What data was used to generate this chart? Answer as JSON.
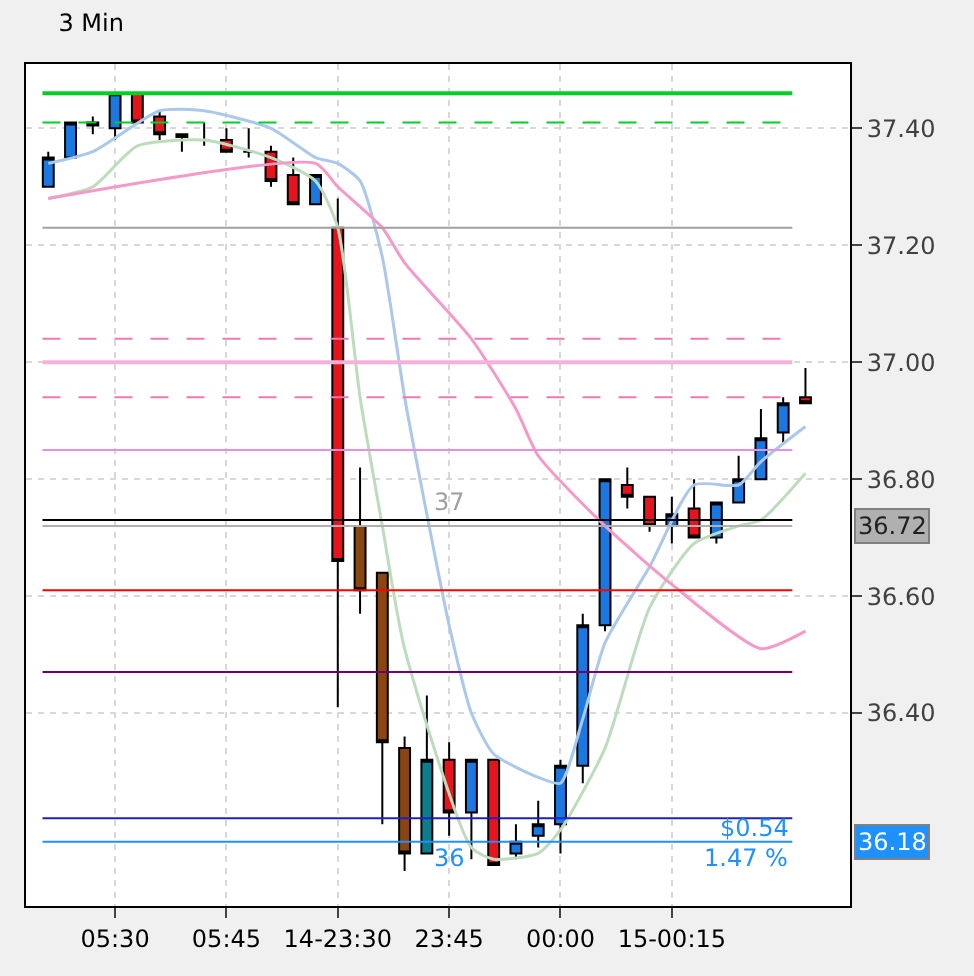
{
  "chart_data": {
    "type": "candlestick",
    "title": "3 Min",
    "categories": [
      null,
      null,
      null,
      "05:30",
      null,
      null,
      null,
      null,
      "05:45",
      null,
      null,
      null,
      null,
      "14-23:30",
      null,
      null,
      null,
      null,
      "23:45",
      null,
      null,
      null,
      null,
      "00:00",
      null,
      null,
      null,
      null,
      "15-00:15",
      null,
      null,
      null,
      null,
      null,
      null
    ],
    "ohlc": [
      [
        37.3,
        37.36,
        37.3,
        37.35
      ],
      [
        37.35,
        37.41,
        37.35,
        37.41
      ],
      [
        37.405,
        37.42,
        37.39,
        37.41
      ],
      [
        37.4,
        37.46,
        37.38,
        37.46
      ],
      [
        37.46,
        37.46,
        37.41,
        37.41
      ],
      [
        37.42,
        37.43,
        37.38,
        37.39
      ],
      [
        37.39,
        37.39,
        37.36,
        37.385
      ],
      [
        37.38,
        37.41,
        37.37,
        37.38
      ],
      [
        37.38,
        37.4,
        37.36,
        37.36
      ],
      [
        37.36,
        37.4,
        37.35,
        37.36
      ],
      [
        37.36,
        37.37,
        37.3,
        37.31
      ],
      [
        37.32,
        37.35,
        37.27,
        37.27
      ],
      [
        37.27,
        37.32,
        37.27,
        37.32
      ],
      [
        37.23,
        37.28,
        36.41,
        36.66
      ],
      [
        36.72,
        36.82,
        36.57,
        36.61
      ],
      [
        36.64,
        36.64,
        36.21,
        36.35
      ],
      [
        36.34,
        36.36,
        36.13,
        36.16
      ],
      [
        36.16,
        36.43,
        36.16,
        36.32
      ],
      [
        36.32,
        36.35,
        36.19,
        36.23
      ],
      [
        36.23,
        36.32,
        36.15,
        36.32
      ],
      [
        36.32,
        36.32,
        36.14,
        36.14
      ],
      [
        36.16,
        36.21,
        36.15,
        36.18
      ],
      [
        36.19,
        36.25,
        36.17,
        36.21
      ],
      [
        36.21,
        36.32,
        36.16,
        36.31
      ],
      [
        36.31,
        36.57,
        36.28,
        36.55
      ],
      [
        36.55,
        36.8,
        36.54,
        36.8
      ],
      [
        36.79,
        36.82,
        36.75,
        36.77
      ],
      [
        36.77,
        36.77,
        36.71,
        36.72
      ],
      [
        36.72,
        36.77,
        36.69,
        36.74
      ],
      [
        36.75,
        36.8,
        36.7,
        36.7
      ],
      [
        36.7,
        36.76,
        36.69,
        36.76
      ],
      [
        36.76,
        36.84,
        36.76,
        36.8
      ],
      [
        36.8,
        36.92,
        36.8,
        36.87
      ],
      [
        36.88,
        36.94,
        36.86,
        36.93
      ],
      [
        36.94,
        36.99,
        36.93,
        36.93
      ]
    ],
    "colors": [
      "#1a78e0",
      "#1a78e0",
      "#000000",
      "#1a78e0",
      "#e8141c",
      "#e8141c",
      "#000000",
      "#000000",
      "#e8141c",
      "#000000",
      "#e8141c",
      "#e8141c",
      "#1a78e0",
      "#e8141c",
      "#8b4513",
      "#8b4513",
      "#8b4513",
      "#0b7d8c",
      "#e8141c",
      "#1a78e0",
      "#e8141c",
      "#1a78e0",
      "#1a78e0",
      "#1a78e0",
      "#1a78e0",
      "#1a78e0",
      "#e8141c",
      "#e8141c",
      "#1a78e0",
      "#e8141c",
      "#1a78e0",
      "#1a78e0",
      "#1a78e0",
      "#1a78e0",
      "#e8141c"
    ],
    "series": [
      {
        "type": "line",
        "color": "#a9c8ec",
        "values": [
          37.34,
          null,
          37.36,
          null,
          null,
          37.43,
          null,
          37.43,
          null,
          null,
          37.4,
          null,
          37.35,
          37.34,
          37.31,
          37.18,
          36.94,
          36.74,
          36.55,
          36.4,
          36.33,
          null,
          36.29,
          36.28,
          36.39,
          36.52,
          null,
          36.65,
          null,
          36.79,
          null,
          36.79,
          36.83,
          null,
          36.89
        ]
      },
      {
        "type": "line",
        "color": "#bcdcbc",
        "values": [
          37.28,
          null,
          37.3,
          null,
          37.37,
          null,
          null,
          37.38,
          null,
          null,
          37.35,
          null,
          37.31,
          37.23,
          36.94,
          36.72,
          36.51,
          null,
          null,
          36.17,
          36.15,
          null,
          36.16,
          36.2,
          null,
          36.34,
          null,
          36.58,
          null,
          36.69,
          null,
          36.72,
          36.73,
          null,
          36.81
        ]
      },
      {
        "type": "line",
        "color": "#f59ac8",
        "values": [
          37.28,
          null,
          null,
          null,
          null,
          null,
          null,
          null,
          null,
          null,
          null,
          null,
          37.34,
          37.3,
          null,
          37.23,
          37.17,
          null,
          null,
          37.04,
          null,
          36.92,
          36.84,
          null,
          null,
          36.72,
          null,
          null,
          36.62,
          null,
          null,
          null,
          36.51,
          null,
          36.54
        ]
      }
    ],
    "ylim": [
      36.07,
      37.51
    ],
    "yticks": [
      {
        "value": 36.4,
        "label": "36.40"
      },
      {
        "value": 36.6,
        "label": "36.60"
      },
      {
        "value": 36.8,
        "label": "36.80"
      },
      {
        "value": 37.0,
        "label": "37.00"
      },
      {
        "value": 37.2,
        "label": "37.20"
      },
      {
        "value": 37.4,
        "label": "37.40"
      }
    ],
    "ref_lines": [
      {
        "axis": "y",
        "value": 37.46,
        "color": "#00d020",
        "line_style": "solid"
      },
      {
        "axis": "y",
        "value": 37.41,
        "color": "#00d020",
        "line_style": "dashed"
      },
      {
        "axis": "y",
        "value": 37.23,
        "color": "#a0a0a0",
        "line_style": "solid"
      },
      {
        "axis": "y",
        "value": 37.04,
        "color": "#f07ab0",
        "line_style": "dashed"
      },
      {
        "axis": "y",
        "value": 37.0,
        "color": "#f8b0d8",
        "line_style": "solid"
      },
      {
        "axis": "y",
        "value": 36.94,
        "color": "#f07ab0",
        "line_style": "dashed"
      },
      {
        "axis": "y",
        "value": 36.85,
        "color": "#e890e0",
        "line_style": "solid"
      },
      {
        "axis": "y",
        "value": 36.73,
        "color": "#000000",
        "line_style": "solid"
      },
      {
        "axis": "y",
        "value": 36.72,
        "color": "#b0b0b0",
        "line_style": "solid",
        "label": "36.72"
      },
      {
        "axis": "y",
        "value": 36.61,
        "color": "#ff0000",
        "line_style": "solid"
      },
      {
        "axis": "y",
        "value": 36.47,
        "color": "#700070",
        "line_style": "solid"
      },
      {
        "axis": "y",
        "value": 36.22,
        "color": "#2020c0",
        "line_style": "solid"
      },
      {
        "axis": "y",
        "value": 36.18,
        "color": "#1e90ff",
        "line_style": "solid",
        "label": "36.18"
      }
    ],
    "annotations": [
      "37",
      "36",
      "$0.54",
      "1.47 %"
    ],
    "grid": true
  }
}
